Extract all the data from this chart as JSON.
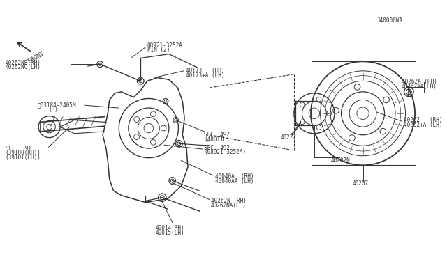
{
  "bg_color": "#ffffff",
  "line_color": "#333333",
  "figsize": [
    6.4,
    3.72
  ],
  "dpi": 100,
  "labels": {
    "40014_rh": "40014(RH)",
    "40015_lh": "40015(LH)",
    "40262n_rh": "40262N (RH)",
    "40262na_lh": "40262NA(LH)",
    "40040a_rh": "40040A  (RH)",
    "40040aa_lh": "40040AA (LH)",
    "sec391": "SEC. 391",
    "sec391_rh": "(39100(RH))",
    "sec391_lh": "(39101(LH))",
    "sec492a": "SEC. 492",
    "sec492a_sub": "(08921-3252A)",
    "sec492b": "SEC. 492",
    "sec492b_sub": "(48011H)",
    "b01b4": "\u000103184-2405M",
    "b01b4_b": "(B)",
    "40262nb_rh": "40262NB(RH)",
    "40262nc_lh": "40262NC(LH)",
    "40173_rh": "40173   (RH)",
    "40173a_lh": "40173+A (LH)",
    "pin": "08921-3252A",
    "pin2": "PIN (2)",
    "front": "FRONT",
    "40202n": "40202N",
    "40222": "40222",
    "40207": "40207",
    "40262_rh": "40262   (RH)",
    "40262a_lh": "40262+A (LH)",
    "40262a_rh": "40262A (RH)",
    "40262aa_lh": "40262AA(LH)",
    "j40000wa": "J40000WA"
  }
}
